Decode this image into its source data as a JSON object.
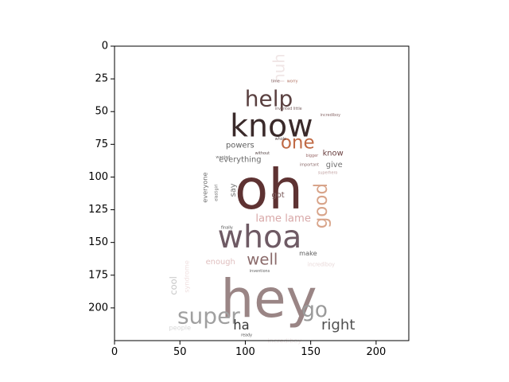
{
  "chart_data": {
    "type": "wordcloud",
    "title": "",
    "xlabel": "",
    "ylabel": "",
    "xlim": [
      0,
      225
    ],
    "ylim": [
      225,
      0
    ],
    "x_ticks": [
      0,
      50,
      100,
      150,
      200
    ],
    "y_ticks": [
      0,
      25,
      50,
      75,
      100,
      125,
      150,
      175,
      200
    ],
    "grid": false,
    "words": [
      {
        "text": "hey",
        "x": 118,
        "y": 193,
        "size": 40,
        "color": "#9a8585"
      },
      {
        "text": "oh",
        "x": 118,
        "y": 110,
        "size": 42,
        "color": "#5e3232"
      },
      {
        "text": "know",
        "x": 120,
        "y": 61,
        "size": 24,
        "color": "#3a2a2a"
      },
      {
        "text": "whoa",
        "x": 111,
        "y": 146,
        "size": 24,
        "color": "#6e5a64"
      },
      {
        "text": "help",
        "x": 118,
        "y": 40,
        "size": 17,
        "color": "#5a4040"
      },
      {
        "text": "one",
        "x": 140,
        "y": 74,
        "size": 14,
        "color": "#c06a45"
      },
      {
        "text": "good",
        "x": 158,
        "y": 122,
        "size": 14,
        "color": "#d8a48a",
        "rotate": -90
      },
      {
        "text": "huh",
        "x": 126,
        "y": 17,
        "size": 12,
        "color": "#f0e6e6",
        "rotate": -90
      },
      {
        "text": "super",
        "x": 72,
        "y": 206,
        "size": 17,
        "color": "#a0a0a0"
      },
      {
        "text": "go",
        "x": 153,
        "y": 202,
        "size": 16,
        "color": "#9a9a9a"
      },
      {
        "text": "well",
        "x": 113,
        "y": 163,
        "size": 12,
        "color": "#8a6a6a"
      },
      {
        "text": "right",
        "x": 171,
        "y": 213,
        "size": 11,
        "color": "#505050"
      },
      {
        "text": "ha",
        "x": 97,
        "y": 213,
        "size": 10,
        "color": "#3a3a3a"
      },
      {
        "text": "lame lame",
        "x": 129,
        "y": 132,
        "size": 8,
        "color": "#d8a8a8"
      },
      {
        "text": "cool",
        "x": 45,
        "y": 183,
        "size": 7,
        "color": "#c8c8c8",
        "rotate": -90
      },
      {
        "text": "everything",
        "x": 96,
        "y": 87,
        "size": 6,
        "color": "#6a6a6a"
      },
      {
        "text": "powers",
        "x": 96,
        "y": 76,
        "size": 6,
        "color": "#606060"
      },
      {
        "text": "give",
        "x": 168,
        "y": 91,
        "size": 6,
        "color": "#707070"
      },
      {
        "text": "know",
        "x": 167,
        "y": 82,
        "size": 6,
        "color": "#6a4040"
      },
      {
        "text": "make",
        "x": 148,
        "y": 158,
        "size": 5,
        "color": "#606060"
      },
      {
        "text": "say",
        "x": 91,
        "y": 110,
        "size": 6,
        "color": "#707070",
        "rotate": -90
      },
      {
        "text": "got",
        "x": 125,
        "y": 114,
        "size": 6,
        "color": "#7a5a5a"
      },
      {
        "text": "everyone",
        "x": 69,
        "y": 108,
        "size": 5,
        "color": "#707070",
        "rotate": -90
      },
      {
        "text": "enough",
        "x": 81,
        "y": 165,
        "size": 6,
        "color": "#e0c0c0"
      },
      {
        "text": "syndrome",
        "x": 55,
        "y": 176,
        "size": 5,
        "color": "#f0e0e0",
        "rotate": -90
      },
      {
        "text": "incrediboy",
        "x": 158,
        "y": 167,
        "size": 4,
        "color": "#e8d8d8"
      },
      {
        "text": "incrediboy",
        "x": 130,
        "y": 225,
        "size": 5,
        "color": "#f0e8e8"
      },
      {
        "text": "people",
        "x": 50,
        "y": 215,
        "size": 5,
        "color": "#d8d8d8"
      },
      {
        "text": "finally",
        "x": 86,
        "y": 139,
        "size": 3,
        "color": "#505050"
      },
      {
        "text": "superhero",
        "x": 163,
        "y": 97,
        "size": 3,
        "color": "#c0a0a0"
      },
      {
        "text": "bigger",
        "x": 151,
        "y": 84,
        "size": 3,
        "color": "#9a6a6a"
      },
      {
        "text": "important",
        "x": 149,
        "y": 91,
        "size": 3,
        "color": "#8a6a6a"
      },
      {
        "text": "time",
        "x": 123,
        "y": 27,
        "size": 3,
        "color": "#8a7070"
      },
      {
        "text": "worry",
        "x": 136,
        "y": 27,
        "size": 3,
        "color": "#b07060"
      },
      {
        "text": "invented little",
        "x": 133,
        "y": 48,
        "size": 3,
        "color": "#7a6060"
      },
      {
        "text": "incrediboy",
        "x": 165,
        "y": 53,
        "size": 3,
        "color": "#8a6a6a"
      },
      {
        "text": "whole",
        "x": 127,
        "y": 71,
        "size": 3,
        "color": "#5a4a4a"
      },
      {
        "text": "without",
        "x": 113,
        "y": 82,
        "size": 3,
        "color": "#5a4a4a"
      },
      {
        "text": "wanted",
        "x": 83,
        "y": 85,
        "size": 3,
        "color": "#707070"
      },
      {
        "text": "ready",
        "x": 101,
        "y": 221,
        "size": 3,
        "color": "#505050"
      },
      {
        "text": "elastigirl",
        "x": 78,
        "y": 112,
        "size": 3,
        "color": "#606060",
        "rotate": -90
      },
      {
        "text": "inventions",
        "x": 111,
        "y": 172,
        "size": 3,
        "color": "#606060"
      }
    ]
  }
}
